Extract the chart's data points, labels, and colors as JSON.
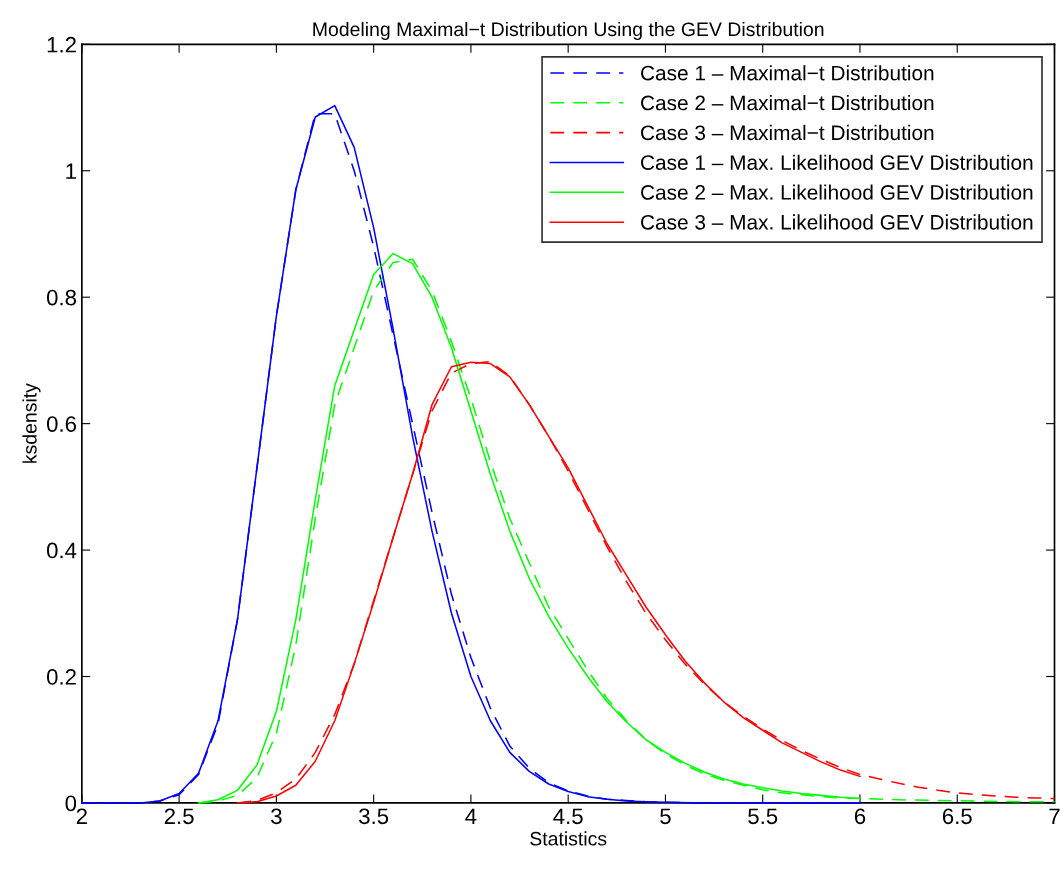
{
  "chart_data": {
    "type": "line",
    "title": "Modeling Maximal−t Distribution Using the GEV Distribution",
    "xlabel": "Statistics",
    "ylabel": "ksdensity",
    "xlim": [
      2,
      7
    ],
    "ylim": [
      0,
      1.2
    ],
    "xticks": [
      2,
      2.5,
      3,
      3.5,
      4,
      4.5,
      5,
      5.5,
      6,
      6.5,
      7
    ],
    "yticks": [
      0,
      0.2,
      0.4,
      0.6,
      0.8,
      1,
      1.2
    ],
    "grid": false,
    "legend": "top right",
    "marker": "none",
    "series": [
      {
        "name": "Case 1 – Maximal−t Distribution",
        "color": "#0000ff",
        "line_style": "dashed",
        "x": [
          2.0,
          2.1,
          2.2,
          2.3,
          2.4,
          2.5,
          2.6,
          2.7,
          2.8,
          2.9,
          3.0,
          3.1,
          3.2,
          3.3,
          3.4,
          3.5,
          3.6,
          3.7,
          3.8,
          3.9,
          4.0,
          4.1,
          4.2,
          4.3,
          4.4,
          4.5,
          4.6,
          4.7,
          4.8,
          4.9,
          5.0,
          5.2,
          5.4,
          5.6,
          5.8,
          6.0
        ],
        "values": [
          0,
          0,
          0,
          0,
          0.003,
          0.013,
          0.045,
          0.125,
          0.29,
          0.53,
          0.77,
          0.97,
          1.09,
          1.09,
          1.0,
          0.88,
          0.74,
          0.6,
          0.46,
          0.33,
          0.23,
          0.15,
          0.09,
          0.055,
          0.032,
          0.019,
          0.011,
          0.006,
          0.004,
          0.002,
          0.001,
          0,
          0,
          0,
          0,
          0
        ]
      },
      {
        "name": "Case 2 – Maximal−t Distribution",
        "color": "#00ff00",
        "line_style": "dashed",
        "x": [
          2.6,
          2.7,
          2.8,
          2.9,
          3.0,
          3.1,
          3.2,
          3.3,
          3.4,
          3.5,
          3.6,
          3.7,
          3.8,
          3.9,
          4.0,
          4.1,
          4.2,
          4.3,
          4.4,
          4.5,
          4.6,
          4.7,
          4.8,
          4.9,
          5.0,
          5.1,
          5.2,
          5.3,
          5.4,
          5.5,
          5.6,
          5.7,
          5.8,
          5.9,
          6.0,
          6.2,
          6.4,
          6.6,
          6.8,
          7.0
        ],
        "values": [
          0,
          0.003,
          0.012,
          0.04,
          0.11,
          0.25,
          0.45,
          0.63,
          0.72,
          0.81,
          0.855,
          0.86,
          0.81,
          0.73,
          0.64,
          0.54,
          0.45,
          0.38,
          0.31,
          0.26,
          0.21,
          0.165,
          0.13,
          0.1,
          0.078,
          0.06,
          0.046,
          0.036,
          0.028,
          0.021,
          0.016,
          0.013,
          0.01,
          0.008,
          0.007,
          0.005,
          0.004,
          0.003,
          0.002,
          0.002
        ]
      },
      {
        "name": "Case 3 – Maximal−t Distribution",
        "color": "#ff0000",
        "line_style": "dashed",
        "x": [
          2.8,
          2.9,
          3.0,
          3.1,
          3.2,
          3.3,
          3.4,
          3.5,
          3.6,
          3.7,
          3.8,
          3.9,
          4.0,
          4.1,
          4.2,
          4.3,
          4.4,
          4.5,
          4.6,
          4.7,
          4.8,
          4.9,
          5.0,
          5.1,
          5.2,
          5.3,
          5.4,
          5.5,
          5.6,
          5.7,
          5.8,
          5.9,
          6.0,
          6.1,
          6.2,
          6.3,
          6.4,
          6.5,
          6.6,
          6.7,
          6.8,
          6.9,
          7.0
        ],
        "values": [
          0,
          0.004,
          0.016,
          0.038,
          0.08,
          0.14,
          0.22,
          0.32,
          0.42,
          0.52,
          0.62,
          0.68,
          0.695,
          0.698,
          0.675,
          0.63,
          0.58,
          0.525,
          0.465,
          0.405,
          0.35,
          0.3,
          0.258,
          0.22,
          0.188,
          0.16,
          0.137,
          0.117,
          0.099,
          0.083,
          0.069,
          0.056,
          0.045,
          0.038,
          0.031,
          0.025,
          0.02,
          0.016,
          0.013,
          0.011,
          0.009,
          0.008,
          0.007
        ]
      },
      {
        "name": "Case 1 – Max. Likelihood GEV Distribution",
        "color": "#0000ff",
        "line_style": "solid",
        "x": [
          2.0,
          2.1,
          2.2,
          2.3,
          2.4,
          2.5,
          2.6,
          2.7,
          2.8,
          2.9,
          3.0,
          3.1,
          3.2,
          3.3,
          3.4,
          3.5,
          3.6,
          3.7,
          3.8,
          3.9,
          4.0,
          4.1,
          4.2,
          4.3,
          4.4,
          4.5,
          4.6,
          4.7,
          4.8,
          4.9,
          5.0,
          5.2,
          5.4,
          5.6,
          5.8,
          6.0
        ],
        "values": [
          0,
          0,
          0,
          0,
          0.003,
          0.015,
          0.047,
          0.13,
          0.29,
          0.53,
          0.77,
          0.97,
          1.085,
          1.103,
          1.037,
          0.91,
          0.75,
          0.58,
          0.43,
          0.3,
          0.2,
          0.13,
          0.08,
          0.05,
          0.03,
          0.018,
          0.01,
          0.006,
          0.003,
          0.002,
          0.001,
          0,
          0,
          0,
          0,
          0
        ]
      },
      {
        "name": "Case 2 – Max. Likelihood GEV Distribution",
        "color": "#00ff00",
        "line_style": "solid",
        "x": [
          2.6,
          2.7,
          2.8,
          2.9,
          3.0,
          3.1,
          3.2,
          3.3,
          3.4,
          3.5,
          3.6,
          3.7,
          3.8,
          3.9,
          4.0,
          4.1,
          4.2,
          4.3,
          4.4,
          4.5,
          4.6,
          4.7,
          4.8,
          4.9,
          5.0,
          5.1,
          5.2,
          5.3,
          5.4,
          5.5,
          5.6,
          5.7,
          5.8,
          5.9,
          6.0
        ],
        "values": [
          0,
          0.005,
          0.02,
          0.06,
          0.145,
          0.29,
          0.48,
          0.66,
          0.748,
          0.836,
          0.869,
          0.853,
          0.8,
          0.72,
          0.62,
          0.52,
          0.43,
          0.355,
          0.295,
          0.245,
          0.2,
          0.16,
          0.128,
          0.1,
          0.08,
          0.063,
          0.049,
          0.038,
          0.03,
          0.024,
          0.019,
          0.015,
          0.012,
          0.009,
          0.007
        ]
      },
      {
        "name": "Case 3 – Max. Likelihood GEV Distribution",
        "color": "#ff0000",
        "line_style": "solid",
        "x": [
          2.8,
          2.9,
          3.0,
          3.1,
          3.2,
          3.3,
          3.4,
          3.5,
          3.6,
          3.7,
          3.8,
          3.9,
          4.0,
          4.1,
          4.2,
          4.3,
          4.4,
          4.5,
          4.6,
          4.7,
          4.8,
          4.9,
          5.0,
          5.1,
          5.2,
          5.3,
          5.4,
          5.5,
          5.6,
          5.7,
          5.8,
          5.9,
          6.0
        ],
        "values": [
          0,
          0.002,
          0.011,
          0.028,
          0.066,
          0.13,
          0.22,
          0.317,
          0.42,
          0.52,
          0.63,
          0.69,
          0.697,
          0.695,
          0.674,
          0.63,
          0.58,
          0.53,
          0.47,
          0.41,
          0.36,
          0.31,
          0.266,
          0.225,
          0.19,
          0.16,
          0.135,
          0.115,
          0.095,
          0.08,
          0.065,
          0.052,
          0.042
        ]
      }
    ]
  }
}
